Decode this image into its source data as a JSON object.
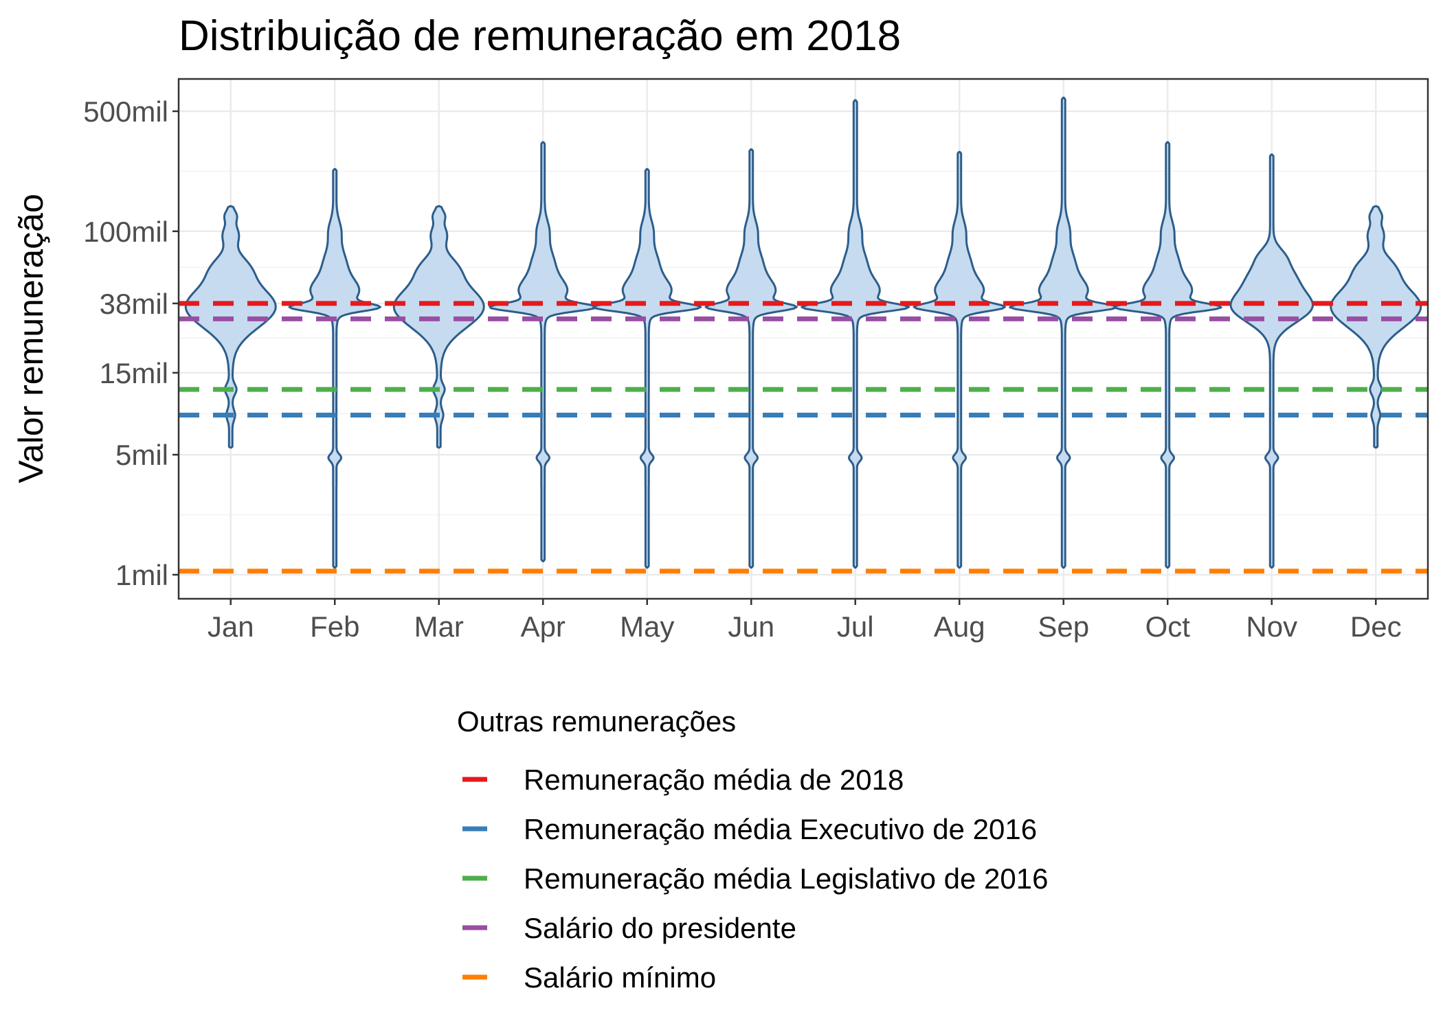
{
  "chart_data": {
    "type": "violin",
    "title": "Distribuição de remuneração em 2018",
    "xlabel": "",
    "ylabel": "Valor remuneração",
    "y_scale": "log10",
    "ylim": [
      800,
      700000
    ],
    "grid": true,
    "categories": [
      "Jan",
      "Feb",
      "Mar",
      "Apr",
      "May",
      "Jun",
      "Jul",
      "Aug",
      "Sep",
      "Oct",
      "Nov",
      "Dec"
    ],
    "y_ticks": [
      {
        "value": 1000,
        "label": "1mil"
      },
      {
        "value": 5000,
        "label": "5mil"
      },
      {
        "value": 15000,
        "label": "15mil"
      },
      {
        "value": 38000,
        "label": "38mil"
      },
      {
        "value": 100000,
        "label": "100mil"
      },
      {
        "value": 500000,
        "label": "500mil"
      }
    ],
    "violins": [
      {
        "month": "Jan",
        "min": 5500,
        "max": 140000,
        "mode": 36000
      },
      {
        "month": "Feb",
        "min": 1100,
        "max": 230000,
        "mode": 36000
      },
      {
        "month": "Mar",
        "min": 5500,
        "max": 140000,
        "mode": 36000
      },
      {
        "month": "Apr",
        "min": 1200,
        "max": 330000,
        "mode": 36000
      },
      {
        "month": "May",
        "min": 1100,
        "max": 230000,
        "mode": 36000
      },
      {
        "month": "Jun",
        "min": 1100,
        "max": 300000,
        "mode": 36000
      },
      {
        "month": "Jul",
        "min": 1100,
        "max": 580000,
        "mode": 36000
      },
      {
        "month": "Aug",
        "min": 1100,
        "max": 290000,
        "mode": 36000
      },
      {
        "month": "Sep",
        "min": 1100,
        "max": 600000,
        "mode": 36000
      },
      {
        "month": "Oct",
        "min": 1100,
        "max": 330000,
        "mode": 36000
      },
      {
        "month": "Nov",
        "min": 1100,
        "max": 280000,
        "mode": 36000
      },
      {
        "month": "Dec",
        "min": 5500,
        "max": 140000,
        "mode": 36000
      }
    ],
    "violin_fill": "#c6dbef",
    "violin_stroke": "#2c5d8a",
    "reference_lines": [
      {
        "name": "Remuneração média de 2018",
        "value": 38000,
        "color": "#e41a1c"
      },
      {
        "name": "Remuneração média Executivo de 2016",
        "value": 8500,
        "color": "#377eb8"
      },
      {
        "name": "Remuneração média Legislativo de 2016",
        "value": 12000,
        "color": "#4daf4a"
      },
      {
        "name": "Salário do presidente",
        "value": 30900,
        "color": "#984ea3"
      },
      {
        "name": "Salário mínimo",
        "value": 1050,
        "color": "#ff7f00"
      }
    ],
    "legend": {
      "title": "Outras remunerações",
      "position": "bottom"
    }
  }
}
